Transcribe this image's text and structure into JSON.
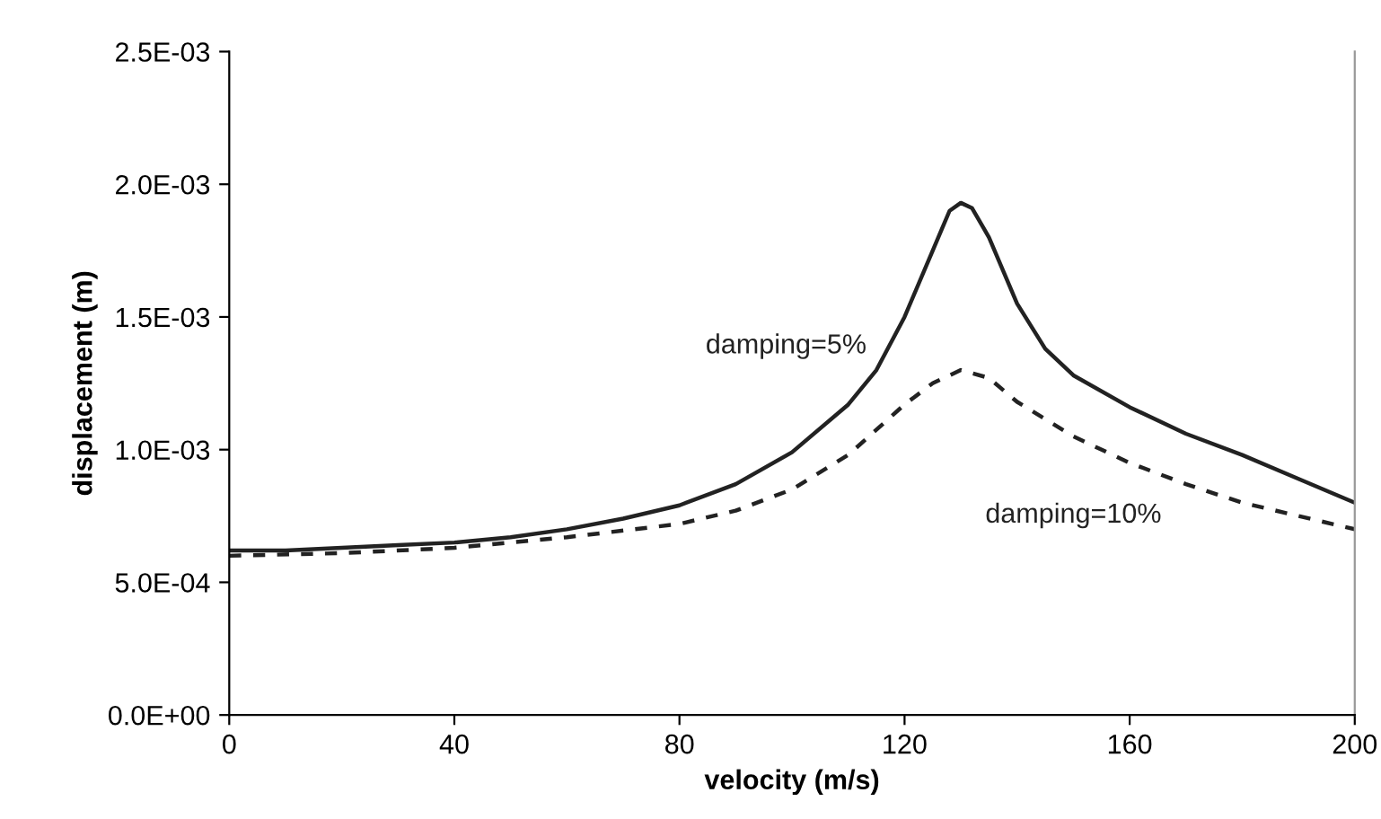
{
  "chart_data": {
    "type": "line",
    "xlabel": "velocity (m/s)",
    "ylabel": "displacement (m)",
    "xlim": [
      0,
      200
    ],
    "xticks": [
      0,
      40,
      80,
      120,
      160,
      200
    ],
    "ylim": [
      0,
      0.0025
    ],
    "yticks": [
      {
        "value": 0,
        "label": "0.0E+00"
      },
      {
        "value": 0.0005,
        "label": "5.0E-04"
      },
      {
        "value": 0.001,
        "label": "1.0E-03"
      },
      {
        "value": 0.0015,
        "label": "1.5E-03"
      },
      {
        "value": 0.002,
        "label": "2.0E-03"
      },
      {
        "value": 0.0025,
        "label": "2.5E-03"
      }
    ],
    "grid": false,
    "legend": false,
    "marker": "none",
    "series": [
      {
        "name": "damping=5%",
        "color": "#222222",
        "line_style": "solid",
        "x": [
          0,
          10,
          20,
          30,
          40,
          50,
          60,
          70,
          80,
          90,
          100,
          110,
          115,
          120,
          125,
          128,
          130,
          132,
          135,
          140,
          145,
          150,
          160,
          170,
          180,
          190,
          200
        ],
        "values": [
          0.00062,
          0.00062,
          0.00063,
          0.00064,
          0.00065,
          0.00067,
          0.0007,
          0.00074,
          0.00079,
          0.00087,
          0.00099,
          0.00117,
          0.0013,
          0.0015,
          0.00175,
          0.0019,
          0.00193,
          0.00191,
          0.0018,
          0.00155,
          0.00138,
          0.00128,
          0.00116,
          0.00106,
          0.00098,
          0.00089,
          0.0008
        ]
      },
      {
        "name": "damping=10%",
        "color": "#222222",
        "line_style": "dashed",
        "x": [
          0,
          20,
          40,
          60,
          80,
          90,
          100,
          110,
          120,
          125,
          130,
          135,
          140,
          150,
          160,
          170,
          180,
          190,
          200
        ],
        "values": [
          0.0006,
          0.00061,
          0.00063,
          0.00067,
          0.00072,
          0.00077,
          0.00085,
          0.00098,
          0.00117,
          0.00125,
          0.0013,
          0.00127,
          0.00118,
          0.00105,
          0.00095,
          0.00087,
          0.0008,
          0.00075,
          0.0007
        ]
      }
    ]
  }
}
